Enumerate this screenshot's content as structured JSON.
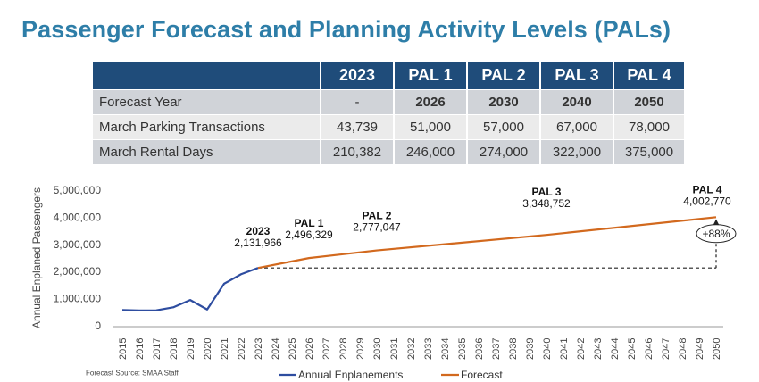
{
  "title": "Passenger Forecast and Planning Activity Levels (PALs)",
  "table": {
    "headers": [
      "",
      "2023",
      "PAL 1",
      "PAL 2",
      "PAL 3",
      "PAL 4"
    ],
    "rows": [
      {
        "label": "Forecast Year",
        "values": [
          "-",
          "2026",
          "2030",
          "2040",
          "2050"
        ]
      },
      {
        "label": "March Parking Transactions",
        "values": [
          "43,739",
          "51,000",
          "57,000",
          "67,000",
          "78,000"
        ]
      },
      {
        "label": "March Rental Days",
        "values": [
          "210,382",
          "246,000",
          "274,000",
          "322,000",
          "375,000"
        ]
      }
    ]
  },
  "source_note": "Forecast Source: SMAA Staff",
  "colors": {
    "title": "#2E7EA8",
    "table_header": "#1F4C7A",
    "annual_enplanements": "#2E4DA0",
    "forecast": "#D2691E"
  },
  "chart_data": {
    "type": "line",
    "ylabel": "Annual Enplaned Passengers",
    "xlabel": "",
    "ylim": [
      0,
      5000000
    ],
    "yticks": [
      0,
      1000000,
      2000000,
      3000000,
      4000000,
      5000000
    ],
    "ytick_labels": [
      "0",
      "1,000,000",
      "2,000,000",
      "3,000,000",
      "4,000,000",
      "5,000,000"
    ],
    "x_categories": [
      "2015",
      "2016",
      "2017",
      "2018",
      "2019",
      "2020",
      "2021",
      "2022",
      "2023",
      "2024",
      "2025",
      "2026",
      "2027",
      "2028",
      "2029",
      "2030",
      "2031",
      "2032",
      "2033",
      "2034",
      "2035",
      "2036",
      "2037",
      "2038",
      "2039",
      "2040",
      "2041",
      "2042",
      "2043",
      "2044",
      "2045",
      "2046",
      "2047",
      "2048",
      "2049",
      "2050"
    ],
    "grid": false,
    "legend_position": "bottom",
    "series": [
      {
        "name": "Annual Enplanements",
        "x": [
          "2015",
          "2016",
          "2017",
          "2018",
          "2019",
          "2020",
          "2021",
          "2022",
          "2023"
        ],
        "values": [
          580000,
          565000,
          570000,
          680000,
          950000,
          600000,
          1550000,
          1900000,
          2131966
        ]
      },
      {
        "name": "Forecast",
        "x": [
          "2023",
          "2026",
          "2030",
          "2040",
          "2050"
        ],
        "values": [
          2131966,
          2496329,
          2777047,
          3348752,
          4002770
        ]
      }
    ],
    "annotations": [
      {
        "label": "2023",
        "value_text": "2,131,966",
        "x": "2023",
        "y": 2131966
      },
      {
        "label": "PAL 1",
        "value_text": "2,496,329",
        "x": "2026",
        "y": 2496329
      },
      {
        "label": "PAL 2",
        "value_text": "2,777,047",
        "x": "2030",
        "y": 2777047
      },
      {
        "label": "PAL 3",
        "value_text": "3,348,752",
        "x": "2040",
        "y": 3348752
      },
      {
        "label": "PAL 4",
        "value_text": "4,002,770",
        "x": "2050",
        "y": 4002770
      }
    ],
    "baseline": {
      "from": "2023",
      "to": "2050",
      "y": 2131966
    },
    "growth": {
      "label": "+88%",
      "x": "2050",
      "from": 2131966,
      "to": 4002770
    }
  }
}
